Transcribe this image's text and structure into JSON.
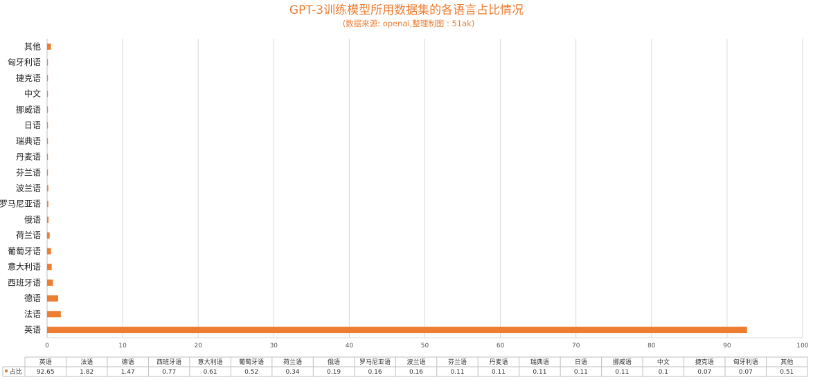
{
  "chart_data": {
    "type": "bar",
    "orientation": "horizontal",
    "title": "GPT-3训练模型所用数据集的各语言占比情况",
    "subtitle": "(数据来源: openai,整理制图 : 51ak)",
    "categories": [
      "英语",
      "法语",
      "德语",
      "西班牙语",
      "意大利语",
      "葡萄牙语",
      "荷兰语",
      "俄语",
      "罗马尼亚语",
      "波兰语",
      "芬兰语",
      "丹麦语",
      "瑞典语",
      "日语",
      "挪威语",
      "中文",
      "捷克语",
      "匈牙利语",
      "其他"
    ],
    "series": [
      {
        "name": "占比",
        "color": "#ED7D31",
        "values": [
          92.65,
          1.82,
          1.47,
          0.77,
          0.61,
          0.52,
          0.34,
          0.19,
          0.16,
          0.16,
          0.11,
          0.11,
          0.11,
          0.11,
          0.11,
          0.1,
          0.07,
          0.07,
          0.51
        ]
      }
    ],
    "xlim": [
      0,
      100
    ],
    "xticks": [
      "0",
      "10",
      "20",
      "30",
      "40",
      "50",
      "60",
      "70",
      "80",
      "90",
      "100"
    ],
    "grid": "vertical",
    "data_table": true,
    "table_values": [
      "92.65",
      "1.82",
      "1.47",
      "0.77",
      "0.61",
      "0.52",
      "0.34",
      "0.19",
      "0.16",
      "0.16",
      "0.11",
      "0.11",
      "0.11",
      "0.11",
      "0.11",
      "0.1",
      "0.07",
      "0.07",
      "0.51"
    ]
  }
}
